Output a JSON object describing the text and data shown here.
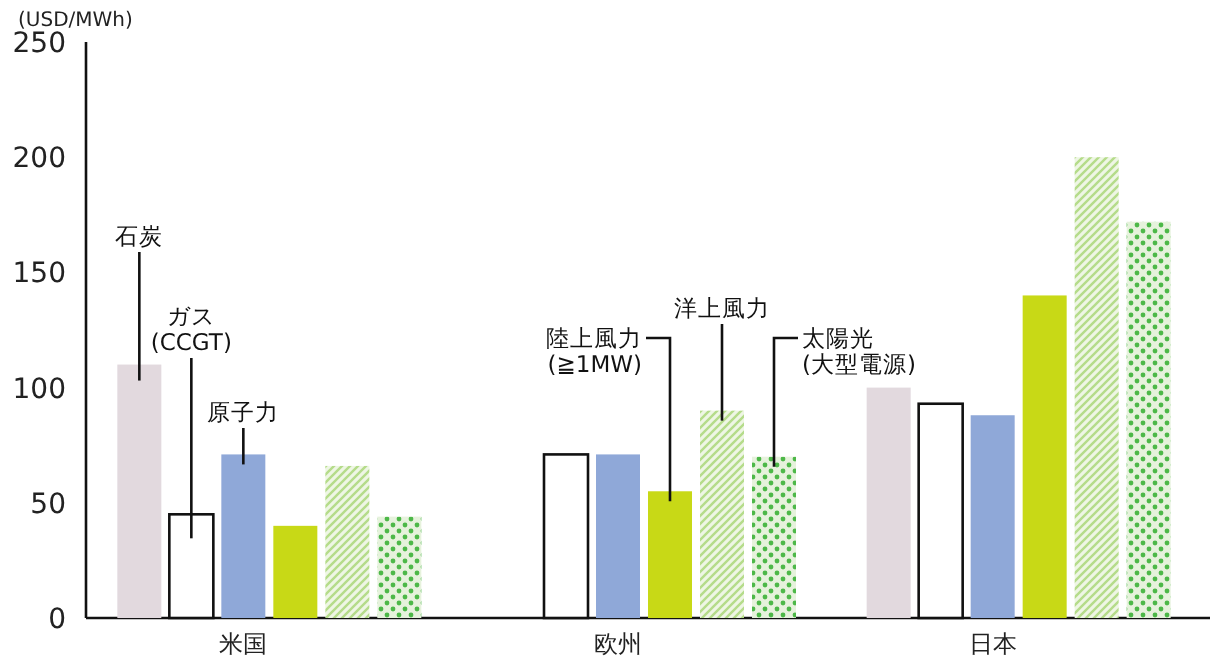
{
  "chart_data": {
    "type": "bar",
    "ylabel": "(USD/MWh)",
    "categories": [
      "米国",
      "欧州",
      "日本"
    ],
    "ylim": [
      0,
      250
    ],
    "yticks": [
      0,
      50,
      100,
      150,
      200,
      250
    ],
    "grid": false,
    "legend": false,
    "series": [
      {
        "name": "石炭",
        "color": "#e2d9de",
        "values": [
          110,
          null,
          100
        ]
      },
      {
        "name": "ガス\n(CCGT)",
        "color": "#ffffff",
        "values": [
          45,
          71,
          93
        ]
      },
      {
        "name": "原子力",
        "color": "#8fa8d8",
        "values": [
          71,
          71,
          88
        ]
      },
      {
        "name": "陸上風力\n(≧1MW)",
        "color": "#c8d916",
        "values": [
          40,
          55,
          140
        ]
      },
      {
        "name": "洋上風力",
        "color": "#b5dc8a",
        "values": [
          66,
          90,
          200
        ]
      },
      {
        "name": "太陽光\n(大型電源)",
        "color": "#4db848",
        "values": [
          44,
          70,
          172
        ]
      }
    ]
  }
}
